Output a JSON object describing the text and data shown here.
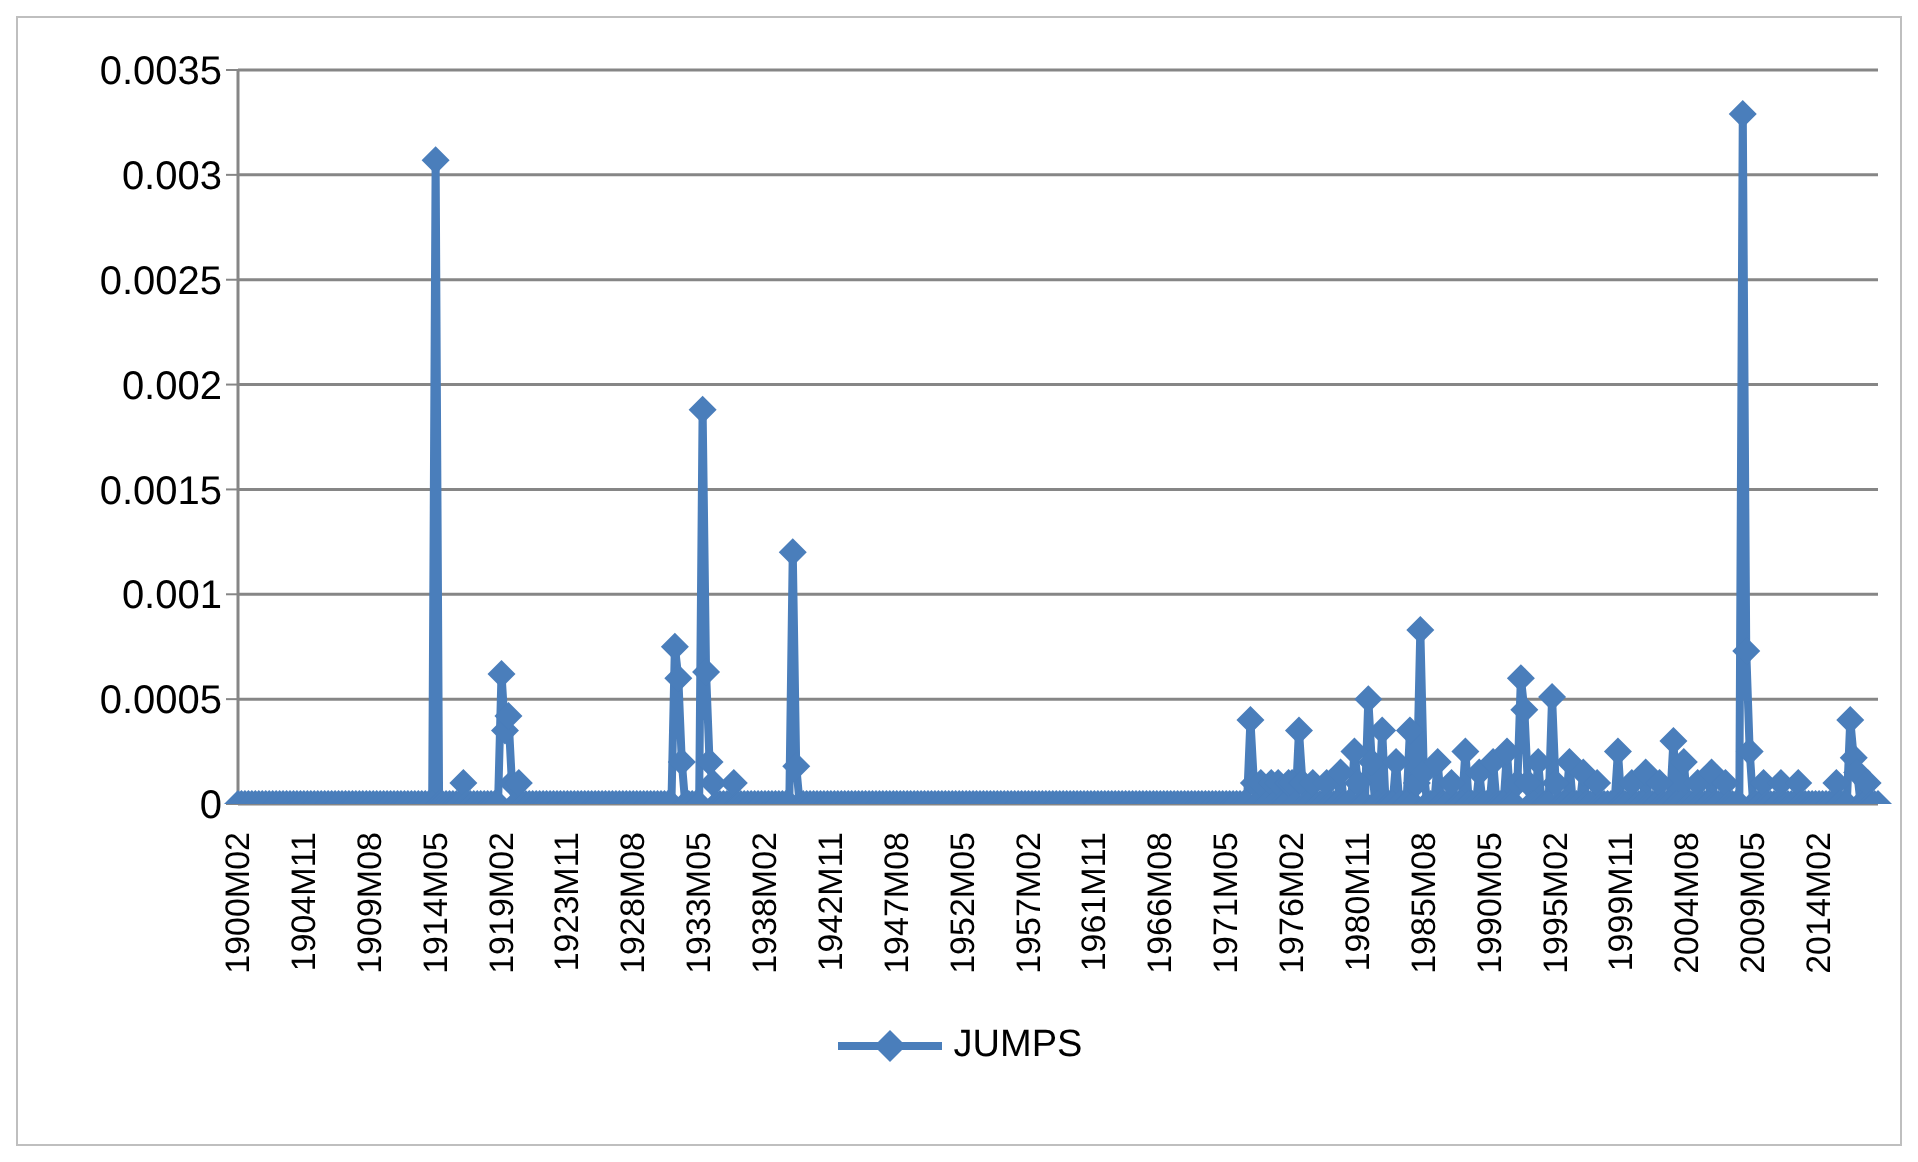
{
  "chart_data": {
    "type": "line",
    "legend": "bottom",
    "marker": "diamond",
    "grid": "y",
    "line_style": "solid",
    "categories": [
      "1900M02",
      null,
      null,
      null,
      null,
      null,
      null,
      null,
      null,
      null,
      null,
      null,
      null,
      null,
      null,
      null,
      null,
      null,
      null,
      "1904M11",
      null,
      null,
      null,
      null,
      null,
      null,
      null,
      null,
      null,
      null,
      null,
      null,
      null,
      null,
      null,
      null,
      null,
      null,
      "1909M08",
      null,
      null,
      null,
      null,
      null,
      null,
      null,
      null,
      null,
      null,
      null,
      null,
      null,
      null,
      null,
      null,
      null,
      null,
      "1914M05",
      null,
      null,
      null,
      null,
      null,
      null,
      null,
      null,
      null,
      null,
      null,
      null,
      null,
      null,
      null,
      null,
      null,
      null,
      "1919M02",
      null,
      null,
      null,
      null,
      null,
      null,
      null,
      null,
      null,
      null,
      null,
      null,
      null,
      null,
      null,
      null,
      null,
      null,
      "1923M11",
      null,
      null,
      null,
      null,
      null,
      null,
      null,
      null,
      null,
      null,
      null,
      null,
      null,
      null,
      null,
      null,
      null,
      null,
      "1928M08",
      null,
      null,
      null,
      null,
      null,
      null,
      null,
      null,
      null,
      null,
      null,
      null,
      null,
      null,
      null,
      null,
      null,
      null,
      "1933M05",
      null,
      null,
      null,
      null,
      null,
      null,
      null,
      null,
      null,
      null,
      null,
      null,
      null,
      null,
      null,
      null,
      null,
      null,
      "1938M02",
      null,
      null,
      null,
      null,
      null,
      null,
      null,
      null,
      null,
      null,
      null,
      null,
      null,
      null,
      null,
      null,
      null,
      null,
      "1942M11",
      null,
      null,
      null,
      null,
      null,
      null,
      null,
      null,
      null,
      null,
      null,
      null,
      null,
      null,
      null,
      null,
      null,
      null,
      "1947M08",
      null,
      null,
      null,
      null,
      null,
      null,
      null,
      null,
      null,
      null,
      null,
      null,
      null,
      null,
      null,
      null,
      null,
      null,
      "1952M05",
      null,
      null,
      null,
      null,
      null,
      null,
      null,
      null,
      null,
      null,
      null,
      null,
      null,
      null,
      null,
      null,
      null,
      null,
      "1957M02",
      null,
      null,
      null,
      null,
      null,
      null,
      null,
      null,
      null,
      null,
      null,
      null,
      null,
      null,
      null,
      null,
      null,
      null,
      "1961M11",
      null,
      null,
      null,
      null,
      null,
      null,
      null,
      null,
      null,
      null,
      null,
      null,
      null,
      null,
      null,
      null,
      null,
      null,
      "1966M08",
      null,
      null,
      null,
      null,
      null,
      null,
      null,
      null,
      null,
      null,
      null,
      null,
      null,
      null,
      null,
      null,
      null,
      null,
      "1971M05",
      null,
      null,
      null,
      null,
      null,
      null,
      null,
      null,
      null,
      null,
      null,
      null,
      null,
      null,
      null,
      null,
      null,
      null,
      "1976M02",
      null,
      null,
      null,
      null,
      null,
      null,
      null,
      null,
      null,
      null,
      null,
      null,
      null,
      null,
      null,
      null,
      null,
      null,
      "1980M11",
      null,
      null,
      null,
      null,
      null,
      null,
      null,
      null,
      null,
      null,
      null,
      null,
      null,
      null,
      null,
      null,
      null,
      null,
      "1985M08",
      null,
      null,
      null,
      null,
      null,
      null,
      null,
      null,
      null,
      null,
      null,
      null,
      null,
      null,
      null,
      null,
      null,
      null,
      "1990M05",
      null,
      null,
      null,
      null,
      null,
      null,
      null,
      null,
      null,
      null,
      null,
      null,
      null,
      null,
      null,
      null,
      null,
      null,
      "1995M02",
      null,
      null,
      null,
      null,
      null,
      null,
      null,
      null,
      null,
      null,
      null,
      null,
      null,
      null,
      null,
      null,
      null,
      null,
      "1999M11",
      null,
      null,
      null,
      null,
      null,
      null,
      null,
      null,
      null,
      null,
      null,
      null,
      null,
      null,
      null,
      null,
      null,
      null,
      "2004M08",
      null,
      null,
      null,
      null,
      null,
      null,
      null,
      null,
      null,
      null,
      null,
      null,
      null,
      null,
      null,
      null,
      null,
      null,
      "2009M05",
      null,
      null,
      null,
      null,
      null,
      null,
      null,
      null,
      null,
      null,
      null,
      null,
      null,
      null,
      null,
      null,
      null,
      null,
      "2014M02",
      null,
      null,
      null,
      null,
      null,
      null,
      null,
      null,
      null,
      null,
      null,
      null,
      null,
      null,
      null,
      null,
      null
    ],
    "ylim": [
      0,
      0.0035
    ],
    "yticks": [
      0,
      0.0005,
      0.001,
      0.0015,
      0.002,
      0.0025,
      0.003,
      0.0035
    ],
    "series": [
      {
        "name": "JUMPS",
        "color": "#4a7ebb",
        "values": [
          0,
          0,
          0,
          0,
          0,
          0,
          0,
          0,
          0,
          0,
          0,
          0,
          0,
          0,
          0,
          0,
          0,
          0,
          0,
          0,
          0,
          0,
          0,
          0,
          0,
          0,
          0,
          0,
          0,
          0,
          0,
          0,
          0,
          0,
          0,
          0,
          0,
          0,
          0,
          0,
          0,
          0,
          0,
          0,
          0,
          0,
          0,
          0,
          0,
          0,
          0,
          0,
          0,
          0,
          0,
          0,
          0,
          0.00307,
          0,
          0,
          0,
          0,
          0,
          0,
          0,
          0.0001,
          0,
          0,
          0,
          0,
          0,
          0,
          0,
          0,
          0,
          0,
          0.00062,
          0.00035,
          0.00042,
          0.0001,
          0,
          0.0001,
          0,
          0,
          0,
          0,
          0,
          0,
          0,
          0,
          0,
          0,
          0,
          0,
          0,
          0,
          0,
          0,
          0,
          0,
          0,
          0,
          0,
          0,
          0,
          0,
          0,
          0,
          0,
          0,
          0,
          0,
          0,
          0,
          0,
          0,
          0,
          0,
          0,
          0,
          0,
          0,
          0,
          0,
          0,
          0,
          0.00075,
          0.0006,
          0.0002,
          0,
          0,
          0,
          0,
          0,
          0.00188,
          0.00063,
          0.0002,
          0.0001,
          0,
          0,
          0,
          0,
          0,
          0.0001,
          0,
          0,
          0,
          0,
          0,
          0,
          0,
          0,
          0,
          0,
          0,
          0,
          0,
          0,
          0,
          0,
          0.0012,
          0.00018,
          0,
          0,
          0,
          0,
          0,
          0,
          0,
          0,
          0,
          0,
          0,
          0,
          0,
          0,
          0,
          0,
          0,
          0,
          0,
          0,
          0,
          0,
          0,
          0,
          0,
          0,
          0,
          0,
          0,
          0,
          0,
          0,
          0,
          0,
          0,
          0,
          0,
          0,
          0,
          0,
          0,
          0,
          0,
          0,
          0,
          0,
          0,
          0,
          0,
          0,
          0,
          0,
          0,
          0,
          0,
          0,
          0,
          0,
          0,
          0,
          0,
          0,
          0,
          0,
          0,
          0,
          0,
          0,
          0,
          0,
          0,
          0,
          0,
          0,
          0,
          0,
          0,
          0,
          0,
          0,
          0,
          0,
          0,
          0,
          0,
          0,
          0,
          0,
          0,
          0,
          0,
          0,
          0,
          0,
          0,
          0,
          0,
          0,
          0,
          0,
          0,
          0,
          0,
          0,
          0,
          0,
          0,
          0,
          0,
          0,
          0,
          0,
          0,
          0,
          0,
          0,
          0,
          0,
          0,
          0,
          0,
          0,
          0,
          0,
          0,
          0,
          0,
          0,
          0,
          0,
          0.0004,
          0.0001,
          0,
          0.0001,
          0,
          0,
          0.0001,
          0,
          0.0001,
          0,
          0,
          0.0001,
          0.0001,
          0,
          0.00035,
          0.0001,
          0,
          0,
          0.0001,
          0,
          0,
          0,
          0.0001,
          0,
          0,
          0,
          0.00015,
          0,
          0,
          0,
          0.00025,
          0.0001,
          0,
          0,
          0.0005,
          0.0002,
          0,
          0,
          0.00035,
          0,
          0,
          0,
          0.0002,
          0,
          0,
          0,
          0.00035,
          0,
          0.0001,
          0.00083,
          0.00015,
          0,
          0,
          0,
          0.0002,
          0,
          0,
          0,
          0.0001,
          0,
          0,
          0,
          0.00025,
          0,
          0,
          0,
          0.00015,
          0,
          0,
          0,
          0.0002,
          0,
          0,
          0,
          0.00025,
          0,
          0,
          0.0001,
          0.0006,
          0.00045,
          0.0001,
          0,
          0,
          0.0002,
          0,
          0,
          0,
          0.00051,
          0.0001,
          0,
          0,
          0,
          0.0002,
          0,
          0,
          0,
          0.00015,
          0,
          0,
          0,
          0.0001,
          0,
          0,
          0,
          0,
          0,
          0.00025,
          0,
          0,
          0,
          0.0001,
          0,
          0,
          0,
          0.00015,
          0,
          0,
          0,
          0.0001,
          0,
          0,
          0,
          0.0003,
          0,
          0,
          0.0002,
          0,
          0,
          0,
          0.0001,
          0,
          0,
          0,
          0.00015,
          0,
          0,
          0,
          0.0001,
          0,
          0,
          0,
          0,
          0.00329,
          0.00073,
          0.00025,
          0,
          0,
          0,
          0.0001,
          0,
          0,
          0,
          0,
          0.0001,
          0,
          0,
          0,
          0,
          0.0001,
          0,
          0,
          0,
          0,
          0,
          0,
          0,
          0,
          0,
          0,
          0.0001,
          0,
          0,
          0,
          0.0004,
          0.00022,
          0.00015,
          0,
          0,
          0.0001,
          0,
          0,
          0
        ]
      }
    ]
  }
}
